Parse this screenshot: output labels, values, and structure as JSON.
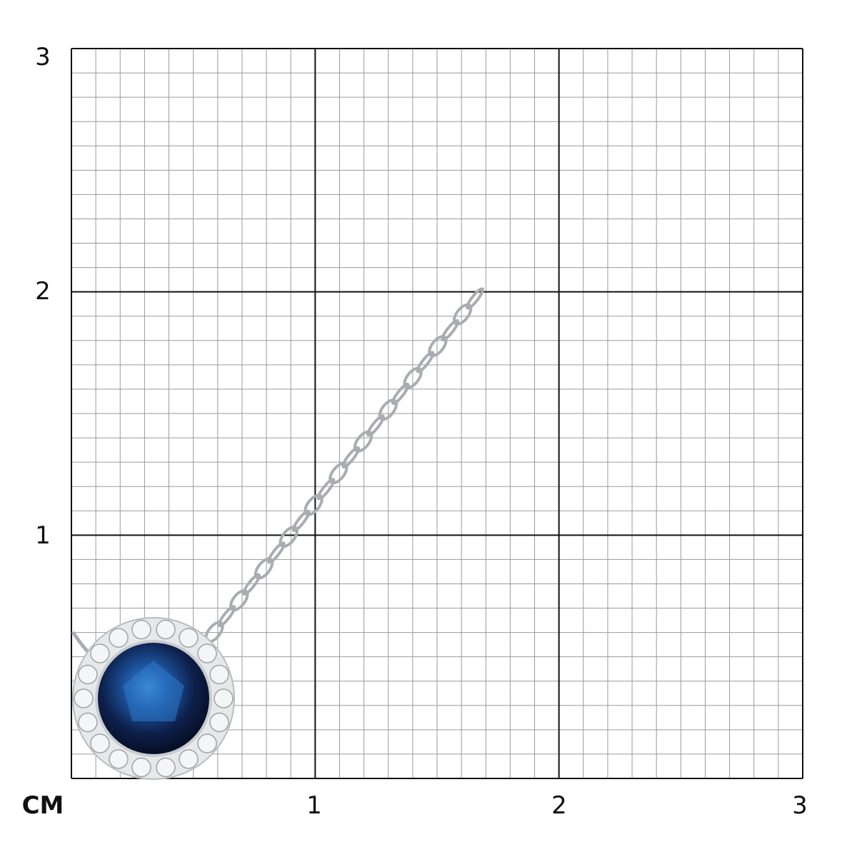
{
  "scale": {
    "unit_label": "CM",
    "y_ticks": [
      "1",
      "2",
      "3"
    ],
    "x_ticks": [
      "1",
      "2",
      "3"
    ],
    "range_cm": [
      0,
      3
    ],
    "minor_divisions_per_cm": 10
  },
  "product": {
    "type": "pendant-necklace",
    "stone_color": "#0d1f4a",
    "halo_color": "#e6e8ea",
    "metal_color": "#d8dadc"
  },
  "colors": {
    "major_grid": "#111111",
    "minor_grid": "#9a9a9a"
  }
}
